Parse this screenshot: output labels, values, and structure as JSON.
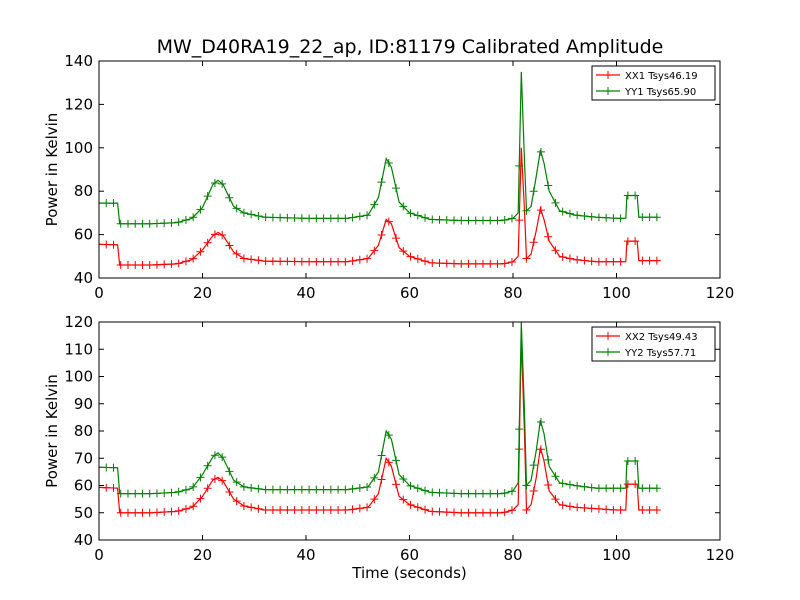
{
  "figure": {
    "title": "MW_D40RA19_22_ap, ID:81179 Calibrated Amplitude"
  },
  "chart_data": [
    {
      "type": "line",
      "title": "MW_D40RA19_22_ap, ID:81179 Calibrated Amplitude",
      "xlabel": "",
      "ylabel": "Power in Kelvin",
      "xlim": [
        0,
        120
      ],
      "ylim": [
        40,
        140
      ],
      "xticks": [
        "0",
        "20",
        "40",
        "60",
        "80",
        "100",
        "120"
      ],
      "yticks": [
        "40",
        "60",
        "80",
        "100",
        "120",
        "140"
      ],
      "grid": false,
      "legend_position": "top-right",
      "marker": "+",
      "series": [
        {
          "name": "XX1 Tsys46.19",
          "color": "#ff0000",
          "points": [
            [
              0,
              55.5
            ],
            [
              3.6,
              55.3
            ],
            [
              4,
              46
            ],
            [
              10,
              46
            ],
            [
              15,
              46.5
            ],
            [
              18,
              48.5
            ],
            [
              20,
              53
            ],
            [
              22,
              59.5
            ],
            [
              23,
              61
            ],
            [
              24,
              59.5
            ],
            [
              26,
              52
            ],
            [
              28,
              49
            ],
            [
              32,
              47.8
            ],
            [
              40,
              47.5
            ],
            [
              48,
              47.5
            ],
            [
              52,
              49
            ],
            [
              54,
              55
            ],
            [
              55.5,
              67
            ],
            [
              56.5,
              65
            ],
            [
              58,
              54
            ],
            [
              60,
              50
            ],
            [
              64,
              47
            ],
            [
              70,
              46.5
            ],
            [
              78,
              46.5
            ],
            [
              80,
              47.5
            ],
            [
              81,
              50
            ],
            [
              81.6,
              100
            ],
            [
              82.2,
              72
            ],
            [
              82.6,
              49
            ],
            [
              83.5,
              51
            ],
            [
              84.5,
              62
            ],
            [
              85.3,
              72
            ],
            [
              86,
              67
            ],
            [
              87,
              57
            ],
            [
              89,
              50
            ],
            [
              92,
              48.5
            ],
            [
              96,
              47.5
            ],
            [
              100,
              47.5
            ],
            [
              101.8,
              47.5
            ],
            [
              102,
              57
            ],
            [
              104,
              57
            ],
            [
              104.3,
              48
            ],
            [
              108,
              48
            ]
          ]
        },
        {
          "name": "YY1 Tsys65.90",
          "color": "#008000",
          "points": [
            [
              0,
              74.5
            ],
            [
              3.6,
              74.5
            ],
            [
              4,
              65
            ],
            [
              10,
              65
            ],
            [
              15,
              65.5
            ],
            [
              18,
              67.5
            ],
            [
              20,
              72.5
            ],
            [
              22,
              83
            ],
            [
              23,
              85
            ],
            [
              24,
              83
            ],
            [
              26,
              73
            ],
            [
              28,
              70
            ],
            [
              32,
              68
            ],
            [
              40,
              67.5
            ],
            [
              48,
              67.5
            ],
            [
              52,
              69
            ],
            [
              54,
              77
            ],
            [
              55.5,
              95
            ],
            [
              56.5,
              91
            ],
            [
              58,
              75
            ],
            [
              60,
              70
            ],
            [
              64,
              67
            ],
            [
              70,
              66.5
            ],
            [
              78,
              66.5
            ],
            [
              80,
              67.5
            ],
            [
              81,
              70
            ],
            [
              81.6,
              135
            ],
            [
              82.2,
              95
            ],
            [
              82.6,
              71
            ],
            [
              83.5,
              73
            ],
            [
              84.5,
              87
            ],
            [
              85.3,
              99
            ],
            [
              86,
              93
            ],
            [
              87,
              80
            ],
            [
              89,
              71
            ],
            [
              92,
              69
            ],
            [
              96,
              68
            ],
            [
              100,
              67.5
            ],
            [
              101.8,
              67.5
            ],
            [
              102,
              78
            ],
            [
              104,
              78
            ],
            [
              104.3,
              68
            ],
            [
              108,
              68
            ]
          ]
        }
      ]
    },
    {
      "type": "line",
      "xlabel": "Time (seconds)",
      "ylabel": "Power in Kelvin",
      "xlim": [
        0,
        120
      ],
      "ylim": [
        40,
        120
      ],
      "xticks": [
        "0",
        "20",
        "40",
        "60",
        "80",
        "100",
        "120"
      ],
      "yticks": [
        "40",
        "50",
        "60",
        "70",
        "80",
        "90",
        "100",
        "110",
        "120"
      ],
      "grid": false,
      "legend_position": "top-right",
      "marker": "+",
      "series": [
        {
          "name": "XX2 Tsys49.43",
          "color": "#ff0000",
          "points": [
            [
              0,
              59.3
            ],
            [
              3.6,
              59
            ],
            [
              4,
              50
            ],
            [
              10,
              50
            ],
            [
              15,
              50.5
            ],
            [
              18,
              52
            ],
            [
              20,
              56
            ],
            [
              22,
              62
            ],
            [
              23,
              63
            ],
            [
              24,
              61.5
            ],
            [
              26,
              55
            ],
            [
              28,
              52.5
            ],
            [
              32,
              51
            ],
            [
              40,
              51
            ],
            [
              48,
              51
            ],
            [
              52,
              52
            ],
            [
              54,
              57
            ],
            [
              55.5,
              70
            ],
            [
              56.5,
              67
            ],
            [
              58,
              56
            ],
            [
              60,
              53
            ],
            [
              64,
              50.5
            ],
            [
              70,
              50
            ],
            [
              78,
              50
            ],
            [
              80,
              51
            ],
            [
              81,
              53
            ],
            [
              81.6,
              114
            ],
            [
              82.2,
              80
            ],
            [
              82.6,
              51
            ],
            [
              83.5,
              53
            ],
            [
              84.5,
              63
            ],
            [
              85.3,
              74
            ],
            [
              86,
              69
            ],
            [
              87,
              58
            ],
            [
              89,
              53
            ],
            [
              92,
              52
            ],
            [
              96,
              51.5
            ],
            [
              100,
              51
            ],
            [
              101.8,
              51
            ],
            [
              102,
              60.5
            ],
            [
              104,
              60.5
            ],
            [
              104.3,
              51
            ],
            [
              108,
              51
            ]
          ]
        },
        {
          "name": "YY2 Tsys57.71",
          "color": "#008000",
          "points": [
            [
              0,
              66.7
            ],
            [
              3.6,
              66.5
            ],
            [
              4,
              57
            ],
            [
              10,
              57
            ],
            [
              15,
              57.5
            ],
            [
              18,
              59
            ],
            [
              20,
              64
            ],
            [
              22,
              70.5
            ],
            [
              23,
              72
            ],
            [
              24,
              70
            ],
            [
              26,
              62
            ],
            [
              28,
              59.5
            ],
            [
              32,
              58.5
            ],
            [
              40,
              58.5
            ],
            [
              48,
              58.5
            ],
            [
              52,
              59.5
            ],
            [
              54,
              65
            ],
            [
              55.5,
              80
            ],
            [
              56.5,
              77
            ],
            [
              58,
              64
            ],
            [
              60,
              60
            ],
            [
              64,
              57.5
            ],
            [
              70,
              57
            ],
            [
              78,
              57
            ],
            [
              80,
              58
            ],
            [
              81,
              61
            ],
            [
              81.6,
              120
            ],
            [
              82.2,
              88
            ],
            [
              82.6,
              60
            ],
            [
              83.5,
              62
            ],
            [
              84.5,
              73
            ],
            [
              85.3,
              84
            ],
            [
              86,
              79
            ],
            [
              87,
              67
            ],
            [
              89,
              61
            ],
            [
              92,
              60
            ],
            [
              96,
              59
            ],
            [
              100,
              59
            ],
            [
              101.8,
              59
            ],
            [
              102,
              69
            ],
            [
              104,
              69
            ],
            [
              104.3,
              59
            ],
            [
              108,
              59
            ]
          ]
        }
      ]
    }
  ]
}
